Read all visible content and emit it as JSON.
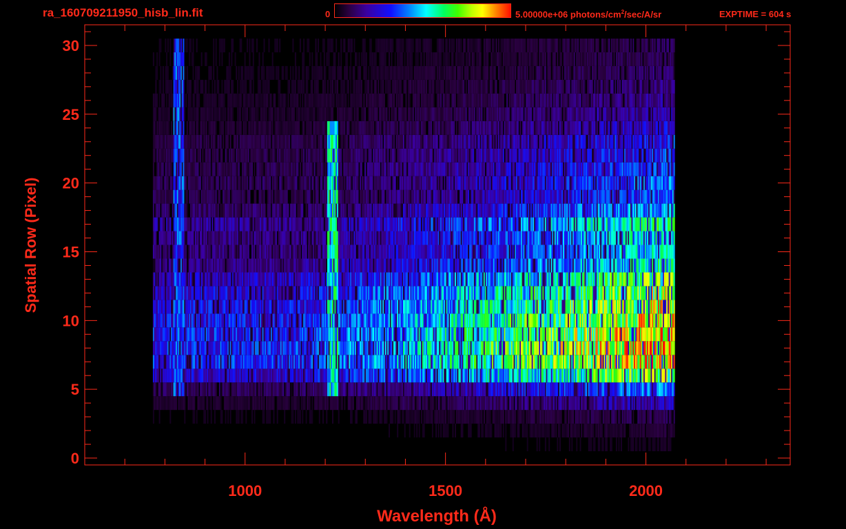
{
  "header": {
    "file_title": "ra_160709211950_hisb_lin.fit",
    "colorbar_min": "0",
    "colorbar_max_prefix": "5.00000e+06 photons/cm",
    "colorbar_max_sup": "2",
    "colorbar_max_suffix": "/sec/A/sr",
    "exptime": "EXPTIME = 604 s"
  },
  "colors": {
    "axis": "#ff2a1a",
    "background": "#000000"
  },
  "chart_data": {
    "type": "heatmap",
    "title": "",
    "xlabel": "Wavelength (Å)",
    "ylabel": "Spatial Row (Pixel)",
    "xlim": [
      600,
      2360
    ],
    "ylim": [
      -0.5,
      31.5
    ],
    "x_ticks": [
      1000,
      1500,
      2000
    ],
    "x_tick_labels": [
      "1000",
      "1500",
      "2000"
    ],
    "y_ticks": [
      0,
      5,
      10,
      15,
      20,
      25,
      30
    ],
    "y_tick_labels": [
      "0",
      "5",
      "10",
      "15",
      "20",
      "25",
      "30"
    ],
    "colorbar": {
      "min": 0,
      "max": 5000000,
      "unit": "photons/cm^2/sec/A/sr"
    },
    "colormap": [
      "#000000",
      "#2a0040",
      "#3a00a0",
      "#1010ff",
      "#0080ff",
      "#00ffff",
      "#00ff60",
      "#40ff00",
      "#c0ff00",
      "#ffff00",
      "#ff8000",
      "#ff1000"
    ],
    "spectrum_range_x": [
      770,
      2070
    ],
    "rows": [
      {
        "y": 0,
        "level": 0.02
      },
      {
        "y": 1,
        "level": 0.05
      },
      {
        "y": 2,
        "level": 0.08
      },
      {
        "y": 3,
        "level": 0.12
      },
      {
        "y": 4,
        "level": 0.22
      },
      {
        "y": 5,
        "level": 0.38
      },
      {
        "y": 6,
        "level": 0.72
      },
      {
        "y": 7,
        "level": 0.92
      },
      {
        "y": 8,
        "level": 0.95
      },
      {
        "y": 9,
        "level": 0.9
      },
      {
        "y": 10,
        "level": 0.86
      },
      {
        "y": 11,
        "level": 0.82
      },
      {
        "y": 12,
        "level": 0.76
      },
      {
        "y": 13,
        "level": 0.68
      },
      {
        "y": 14,
        "level": 0.52
      },
      {
        "y": 15,
        "level": 0.48
      },
      {
        "y": 16,
        "level": 0.5
      },
      {
        "y": 17,
        "level": 0.56
      },
      {
        "y": 18,
        "level": 0.42
      },
      {
        "y": 19,
        "level": 0.34
      },
      {
        "y": 20,
        "level": 0.36
      },
      {
        "y": 21,
        "level": 0.34
      },
      {
        "y": 22,
        "level": 0.32
      },
      {
        "y": 23,
        "level": 0.3
      },
      {
        "y": 24,
        "level": 0.24
      },
      {
        "y": 25,
        "level": 0.2
      },
      {
        "y": 26,
        "level": 0.18
      },
      {
        "y": 27,
        "level": 0.16
      },
      {
        "y": 28,
        "level": 0.14
      },
      {
        "y": 29,
        "level": 0.12
      },
      {
        "y": 30,
        "level": 0.12
      }
    ],
    "features": [
      {
        "name": "line-1216",
        "x": 1216,
        "y_range": [
          5,
          24
        ],
        "strength": 0.55
      },
      {
        "name": "line-834",
        "x": 834,
        "y_range": [
          5,
          30
        ],
        "strength": 0.35
      }
    ]
  }
}
